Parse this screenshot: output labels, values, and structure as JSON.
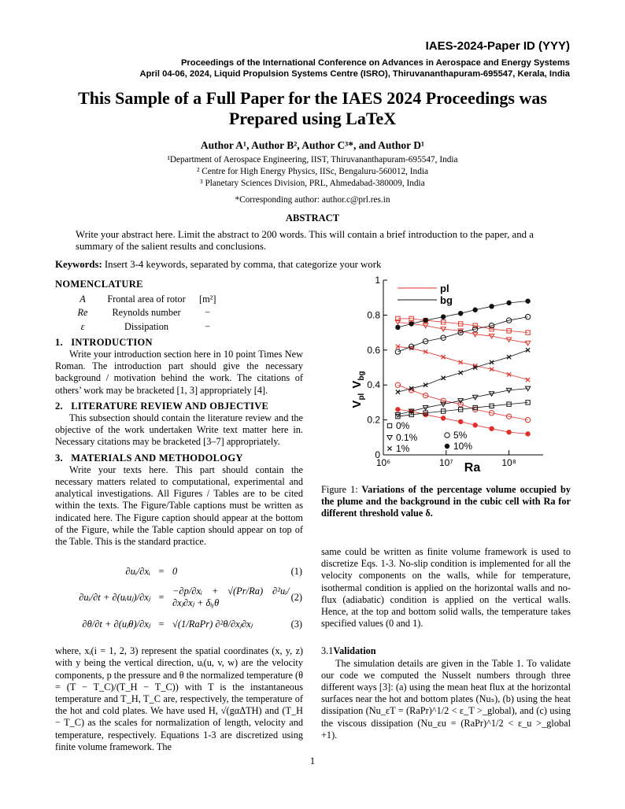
{
  "header": {
    "paper_id": "IAES-2024-Paper ID (YYY)",
    "proceedings": "Proceedings of the International Conference on Advances in Aerospace and Energy Systems",
    "venue": "April 04-06, 2024, Liquid Propulsion Systems Centre (ISRO), Thiruvananthapuram-695547, Kerala, India"
  },
  "title": [
    "This Sample of a Full Paper for the IAES 2024 Proceedings was",
    "Prepared using LaTeX"
  ],
  "authors": "Author A¹, Author B², Author C³*, and Author D¹",
  "affiliations": [
    "¹Department of Aerospace Engineering, IIST, Thiruvananthapuram-695547, India",
    "² Centre for High Energy Physics, IISc, Bengaluru-560012, India",
    "³ Planetary Sciences Division, PRL, Ahmedabad-380009, India"
  ],
  "corresponding": "*Corresponding author: author.c@prl.res.in",
  "abstract": {
    "heading": "ABSTRACT",
    "text": "Write your abstract here. Limit the abstract to 200 words. This will contain a brief introduction to the paper, and a summary of the salient results and conclusions."
  },
  "keywords": {
    "label": "Keywords:",
    "text": "Insert 3-4 keywords, separated by comma, that categorize your work"
  },
  "nomenclature": {
    "heading": "NOMENCLATURE",
    "rows": [
      [
        "A",
        "Frontal area of rotor",
        "[m²]"
      ],
      [
        "Re",
        "Reynolds number",
        "−"
      ],
      [
        "ε",
        "Dissipation",
        "−"
      ]
    ]
  },
  "sections": [
    {
      "number": "1.",
      "title": "INTRODUCTION",
      "text": "Write your introduction section here in 10 point Times New Roman. The introduction part should give the necessary background / motivation behind the work. The citations of others’ work may be bracketed [1, 3] appropriately [4]."
    },
    {
      "number": "2.",
      "title": "LITERATURE REVIEW AND OBJECTIVE",
      "text": "This subsection should contain the literature review and the objective of the work undertaken Write text matter here in. Necessary citations may be bracketed [3–7] appropriately."
    },
    {
      "number": "3.",
      "title": "MATERIALS AND METHODOLOGY",
      "text": "Write your texts here. This part should contain the necessary matters related to computational, experimental and analytical investigations. All Figures / Tables are to be cited within the texts. The Figure/Table captions must be written as indicated here. The Figure caption should appear at the bottom of the Figure, while the Table caption should appear on top of the Table. This is the standard practice."
    }
  ],
  "equations": [
    {
      "lhs": "∂uᵢ/∂xᵢ",
      "rel": "=",
      "rhs": "0",
      "number": "(1)"
    },
    {
      "lhs": "∂uᵢ/∂t + ∂(uᵢuⱼ)/∂xⱼ",
      "rel": "=",
      "rhs": "−∂p/∂xᵢ + √(Pr/Ra) ∂²uᵢ/∂xⱼ∂xⱼ + δᵢᵧθ",
      "number": "(2)"
    },
    {
      "lhs": "∂θ/∂t + ∂(uⱼθ)/∂xⱼ",
      "rel": "=",
      "rhs": "√(1/RaPr) ∂²θ/∂xⱼ∂xⱼ",
      "number": "(3)"
    }
  ],
  "after_equations": "where, xᵢ(i = 1, 2, 3) represent the spatial coordinates (x, y, z) with y being the vertical direction, uᵢ(u, v, w) are the velocity components, p the pressure and θ the normalized temperature (θ = (T − T_C)/(T_H − T_C)) with T is the instantaneous temperature and T_H, T_C are, respectively, the temperature of the hot and cold plates. We have used H, √(gαΔTH) and (T_H − T_C) as the scales for normalization of length, velocity and temperature, respectively. Equations 1-3 are discretized using finite volume framework. The",
  "right_text": "same could be written as finite volume framework is used to discretize Eqs. 1-3. No-slip condition is implemented for all the velocity components on the walls, while for temperature, isothermal condition is applied on the horizontal walls and no-flux (adiabatic) condition is applied on the vertical walls. Hence, at the top and bottom solid walls, the temperature takes specified values (0 and 1).",
  "subsection": {
    "number": "3.1",
    "title": "Validation",
    "text": "The simulation details are given in the Table 1. To validate our code we computed the Nusselt numbers through three different ways [3]: (a) using the mean heat flux at the horizontal surfaces near the hot and bottom plates (Nuₛ), (b) using the heat dissipation (Nu_εT = (RaPr)^1/2 < ε_T >_global), and (c) using the viscous dissipation (Nu_εu = (RaPr)^1/2 < ε_u >_global +1)."
  },
  "figure": {
    "label": "Figure 1:",
    "caption": "Variations of the percentage volume occupied by the plume and the background in the cubic cell with Ra for different threshold value δ."
  },
  "page_number": "1",
  "chart_data": {
    "type": "line",
    "xlabel": "Ra",
    "ylabel": [
      {
        "base": "V",
        "sub": "pl"
      },
      {
        "base": "V",
        "sub": "bg"
      }
    ],
    "log_x": true,
    "xlim": [
      1000000,
      350000000
    ],
    "xticks": [
      {
        "value": 1000000,
        "label": "10⁶"
      },
      {
        "value": 10000000,
        "label": "10⁷"
      },
      {
        "value": 100000000,
        "label": "10⁸"
      }
    ],
    "ylim": [
      0,
      1
    ],
    "yticks": [
      0,
      0.2,
      0.4,
      0.6,
      0.8,
      1
    ],
    "x": [
      1700000,
      2800000,
      4700000,
      9000000,
      17000000,
      29000000,
      53000000,
      100000000,
      200000000
    ],
    "thresholds": [
      {
        "label": "0%",
        "marker": "square"
      },
      {
        "label": "0.1%",
        "marker": "triangle"
      },
      {
        "label": "1%",
        "marker": "x"
      },
      {
        "label": "5%",
        "marker": "circle"
      },
      {
        "label": "10%",
        "marker": "disc"
      }
    ],
    "series": [
      {
        "name": "pl",
        "color": "#e0302a",
        "values": [
          [
            0.78,
            0.78,
            0.77,
            0.76,
            0.75,
            0.74,
            0.72,
            0.71,
            0.7
          ],
          [
            0.76,
            0.75,
            0.74,
            0.72,
            0.71,
            0.69,
            0.68,
            0.66,
            0.64
          ],
          [
            0.62,
            0.61,
            0.59,
            0.56,
            0.53,
            0.51,
            0.49,
            0.46,
            0.43
          ],
          [
            0.4,
            0.37,
            0.34,
            0.31,
            0.29,
            0.26,
            0.24,
            0.22,
            0.2
          ],
          [
            0.26,
            0.25,
            0.23,
            0.21,
            0.19,
            0.17,
            0.15,
            0.13,
            0.12
          ]
        ]
      },
      {
        "name": "bg",
        "color": "#111111",
        "values": [
          [
            0.22,
            0.23,
            0.24,
            0.25,
            0.26,
            0.27,
            0.28,
            0.29,
            0.3
          ],
          [
            0.23,
            0.25,
            0.27,
            0.29,
            0.31,
            0.33,
            0.35,
            0.37,
            0.38
          ],
          [
            0.36,
            0.38,
            0.4,
            0.44,
            0.47,
            0.5,
            0.53,
            0.56,
            0.6
          ],
          [
            0.59,
            0.62,
            0.65,
            0.67,
            0.7,
            0.72,
            0.74,
            0.77,
            0.79
          ],
          [
            0.73,
            0.75,
            0.77,
            0.79,
            0.81,
            0.83,
            0.85,
            0.87,
            0.88
          ]
        ]
      }
    ]
  }
}
